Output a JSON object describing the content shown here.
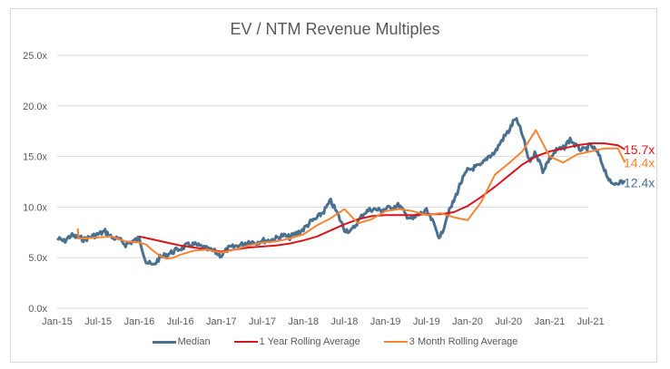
{
  "chart_data": {
    "type": "line",
    "title": "EV / NTM Revenue Multiples",
    "xlabel": "",
    "ylabel": "",
    "ylim": [
      0,
      25
    ],
    "yticks": [
      "0.0x",
      "5.0x",
      "10.0x",
      "15.0x",
      "20.0x",
      "25.0x"
    ],
    "ytick_values": [
      0,
      5,
      10,
      15,
      20,
      25
    ],
    "xticks": [
      "Jan-15",
      "Jul-15",
      "Jan-16",
      "Jul-16",
      "Jan-17",
      "Jul-17",
      "Jan-18",
      "Jul-18",
      "Jan-19",
      "Jul-19",
      "Jan-20",
      "Jul-20",
      "Jan-21",
      "Jul-21"
    ],
    "x_unit": "months since Jan-15",
    "grid": true,
    "legend_position": "bottom",
    "series": [
      {
        "name": "Median",
        "color": "#4a7090",
        "end_label": "12.4x",
        "x": [
          0,
          1,
          2,
          3,
          4,
          5,
          6,
          7,
          8,
          9,
          10,
          11,
          12,
          13,
          14,
          15,
          16,
          17,
          18,
          19,
          20,
          21,
          22,
          23,
          24,
          25,
          26,
          27,
          28,
          29,
          30,
          31,
          32,
          33,
          34,
          35,
          36,
          37,
          38,
          39,
          40,
          41,
          42,
          43,
          44,
          45,
          46,
          47,
          48,
          49,
          50,
          51,
          52,
          53,
          54,
          55,
          56,
          57,
          58,
          59,
          60,
          61,
          62,
          63,
          64,
          65,
          66,
          67,
          68,
          69,
          70,
          71,
          72,
          73,
          74,
          75,
          76,
          77,
          78,
          79,
          80,
          81,
          82,
          83
        ],
        "values": [
          6.9,
          6.6,
          7.2,
          7.0,
          6.8,
          7.1,
          7.3,
          7.6,
          7.0,
          6.8,
          6.3,
          6.6,
          6.9,
          4.6,
          4.2,
          5.0,
          5.3,
          5.6,
          5.9,
          6.2,
          6.3,
          6.1,
          5.8,
          5.6,
          5.2,
          5.9,
          6.1,
          6.3,
          6.6,
          6.5,
          6.7,
          6.7,
          6.9,
          7.2,
          7.0,
          7.4,
          7.8,
          8.5,
          8.9,
          9.6,
          10.6,
          9.3,
          7.8,
          7.6,
          8.6,
          9.5,
          9.8,
          9.7,
          9.8,
          10.0,
          10.2,
          9.2,
          8.8,
          9.3,
          9.6,
          8.4,
          6.9,
          9.1,
          10.6,
          12.4,
          13.6,
          13.9,
          14.1,
          15.0,
          15.4,
          16.6,
          17.5,
          18.8,
          17.2,
          14.5,
          15.4,
          13.6,
          14.8,
          15.6,
          15.8,
          16.7,
          15.9,
          15.6,
          16.1,
          15.4,
          13.8,
          12.2,
          12.5,
          12.4
        ]
      },
      {
        "name": "1 Year Rolling Average",
        "color": "#d9141d",
        "end_label": "15.7x",
        "x": [
          12,
          14,
          16,
          18,
          20,
          22,
          24,
          26,
          28,
          30,
          32,
          34,
          36,
          38,
          40,
          42,
          44,
          46,
          48,
          50,
          52,
          54,
          56,
          58,
          60,
          62,
          64,
          66,
          68,
          70,
          72,
          74,
          76,
          78,
          80,
          82,
          83
        ],
        "values": [
          7.1,
          6.8,
          6.5,
          6.2,
          6.0,
          5.8,
          5.6,
          5.8,
          6.0,
          6.1,
          6.2,
          6.4,
          6.7,
          7.1,
          7.7,
          8.3,
          8.8,
          9.1,
          9.2,
          9.2,
          9.2,
          9.3,
          9.3,
          9.5,
          10.1,
          11.0,
          12.0,
          13.1,
          14.2,
          15.0,
          15.5,
          15.8,
          16.1,
          16.3,
          16.3,
          16.1,
          15.7
        ]
      },
      {
        "name": "3 Month Rolling Average",
        "color": "#f58533",
        "end_label": "14.4x",
        "x": [
          3,
          3.1,
          4,
          6,
          8,
          10,
          12,
          13,
          14,
          15,
          16,
          17,
          18,
          20,
          22,
          24,
          26,
          28,
          30,
          32,
          34,
          36,
          38,
          40,
          42,
          44,
          46,
          48,
          50,
          52,
          54,
          56,
          58,
          60,
          62,
          64,
          66,
          68,
          70,
          72,
          74,
          76,
          78,
          80,
          82,
          83
        ],
        "values": [
          7.9,
          6.9,
          6.9,
          7.0,
          7.1,
          6.6,
          6.5,
          6.3,
          5.7,
          5.2,
          4.9,
          5.0,
          5.3,
          5.7,
          5.8,
          5.5,
          5.8,
          6.2,
          6.5,
          6.6,
          6.9,
          7.3,
          8.2,
          8.9,
          9.8,
          8.4,
          8.8,
          9.6,
          9.8,
          9.6,
          9.2,
          9.4,
          9.0,
          8.7,
          10.5,
          13.2,
          14.3,
          15.5,
          17.6,
          15.0,
          14.4,
          15.2,
          15.5,
          15.8,
          15.8,
          14.4
        ]
      }
    ]
  }
}
